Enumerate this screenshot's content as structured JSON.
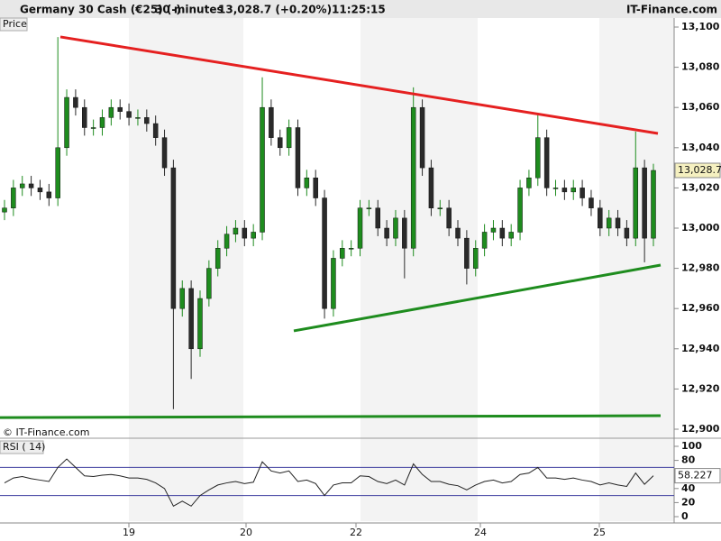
{
  "chart_data": {
    "type": "candlestick",
    "header": {
      "instrument": "Germany 30 Cash (€25) (-)",
      "interval": "30 minutes",
      "price_change": "13,028.7 (+0.20%)",
      "time": "11:25:15",
      "brand": "IT-Finance.com"
    },
    "price_label": "Price",
    "copyright": "© IT-Finance.com",
    "last_price_label": "13,028.7",
    "up_color": "#1e8c1e",
    "down_color": "#2a2a2a",
    "open": [
      13008,
      13010,
      13020,
      13022,
      13020,
      13018,
      13015,
      13040,
      13065,
      13060,
      13050,
      13050,
      13055,
      13060,
      13058,
      13055,
      13055,
      13052,
      13045,
      13030,
      12960,
      12970,
      12940,
      12965,
      12980,
      12990,
      12997,
      13000,
      12995,
      12998,
      13060,
      13045,
      13040,
      13050,
      13020,
      13025,
      13015,
      12960,
      12985,
      12990,
      12990,
      13010,
      13010,
      13000,
      12995,
      13005,
      12990,
      13060,
      13030,
      13010,
      13010,
      13000,
      12995,
      12980,
      12990,
      12998,
      13000,
      12995,
      12998,
      13020,
      13025,
      13045,
      13020,
      13020,
      13018,
      13020,
      13015,
      13010,
      13000,
      13005,
      13000,
      12995,
      13030,
      12995
    ],
    "high": [
      13014,
      13024,
      13026,
      13026,
      13024,
      13022,
      13095,
      13069,
      13069,
      13064,
      13054,
      13059,
      13064,
      13064,
      13062,
      13059,
      13059,
      13056,
      13049,
      13034,
      12974,
      12974,
      12969,
      12984,
      12994,
      13001,
      13004,
      13004,
      13002,
      13075,
      13064,
      13049,
      13054,
      13054,
      13029,
      13029,
      13019,
      12989,
      12994,
      12994,
      13014,
      13014,
      13014,
      13004,
      13009,
      13009,
      13070,
      13064,
      13034,
      13014,
      13014,
      13004,
      12999,
      12994,
      13002,
      13004,
      13004,
      13002,
      13024,
      13029,
      13057,
      13049,
      13024,
      13024,
      13024,
      13024,
      13019,
      13014,
      13009,
      13009,
      13004,
      13048,
      13034,
      13032
    ],
    "low": [
      13004,
      13006,
      13016,
      13016,
      13014,
      13011,
      13011,
      13036,
      13056,
      13046,
      13046,
      13046,
      13051,
      13054,
      13051,
      13051,
      13048,
      13041,
      13026,
      12910,
      12956,
      12925,
      12936,
      12961,
      12976,
      12986,
      12993,
      12991,
      12991,
      12994,
      13041,
      13036,
      13036,
      13016,
      13016,
      13011,
      12955,
      12956,
      12981,
      12986,
      12986,
      13006,
      12996,
      12991,
      12991,
      12975,
      12986,
      13026,
      13006,
      13006,
      12996,
      12991,
      12972,
      12976,
      12986,
      12994,
      12991,
      12991,
      12994,
      13016,
      13021,
      13016,
      13016,
      13014,
      13014,
      13011,
      13006,
      12996,
      12996,
      12996,
      12991,
      12991,
      12983,
      12991
    ],
    "close": [
      13010,
      13020,
      13022,
      13020,
      13018,
      13015,
      13040,
      13065,
      13060,
      13050,
      13050,
      13055,
      13060,
      13058,
      13055,
      13055,
      13052,
      13045,
      13030,
      12960,
      12970,
      12940,
      12965,
      12980,
      12990,
      12997,
      13000,
      12995,
      12998,
      13060,
      13045,
      13040,
      13050,
      13020,
      13025,
      13015,
      12960,
      12985,
      12990,
      12990,
      13010,
      13010,
      13000,
      12995,
      13005,
      12990,
      13060,
      13030,
      13010,
      13010,
      13000,
      12995,
      12980,
      12990,
      12998,
      13000,
      12995,
      12998,
      13020,
      13025,
      13045,
      13020,
      13020,
      13018,
      13020,
      13015,
      13010,
      13000,
      13005,
      13000,
      12995,
      13030,
      12995,
      13028.7
    ],
    "ylim": [
      12900,
      13100
    ],
    "yticks": [
      {
        "value": 12900,
        "label": "12,900"
      },
      {
        "value": 12920,
        "label": "12,920"
      },
      {
        "value": 12940,
        "label": "12,940"
      },
      {
        "value": 12960,
        "label": "12,960"
      },
      {
        "value": 12980,
        "label": "12,980"
      },
      {
        "value": 13000,
        "label": "13,000"
      },
      {
        "value": 13020,
        "label": "13,020"
      },
      {
        "value": 13040,
        "label": "13,040"
      },
      {
        "value": 13060,
        "label": "13,060"
      },
      {
        "value": 13080,
        "label": "13,080"
      },
      {
        "value": 13100,
        "label": "13,100"
      }
    ],
    "x_labels": [
      "19",
      "20",
      "22",
      "24",
      "25"
    ],
    "trend_lines": [
      {
        "color": "#e52020",
        "from": 13095.1,
        "to": 13047.1
      },
      {
        "color": "#1e8c1e",
        "from": 12948.9,
        "to": 12981.6
      },
      {
        "color": "#1e8c1e",
        "from": 12905.8,
        "to": 12906.7
      }
    ],
    "rsi": {
      "label": "RSI ( 14)",
      "color": "#222222",
      "ylim": [
        0,
        100
      ],
      "yticks": [
        100,
        80,
        60,
        40,
        20,
        0
      ],
      "levels": [
        70,
        30
      ],
      "values": [
        48,
        55,
        57,
        54,
        52,
        50,
        70,
        82,
        70,
        58,
        57,
        59,
        60,
        58,
        55,
        55,
        53,
        48,
        40,
        15,
        22,
        15,
        30,
        38,
        45,
        48,
        50,
        47,
        49,
        78,
        65,
        62,
        65,
        50,
        52,
        47,
        30,
        45,
        48,
        48,
        58,
        57,
        50,
        47,
        52,
        45,
        75,
        60,
        50,
        50,
        46,
        44,
        38,
        45,
        50,
        52,
        48,
        50,
        60,
        62,
        70,
        55,
        55,
        53,
        55,
        52,
        50,
        45,
        48,
        45,
        43,
        62,
        46,
        58.227
      ]
    }
  }
}
